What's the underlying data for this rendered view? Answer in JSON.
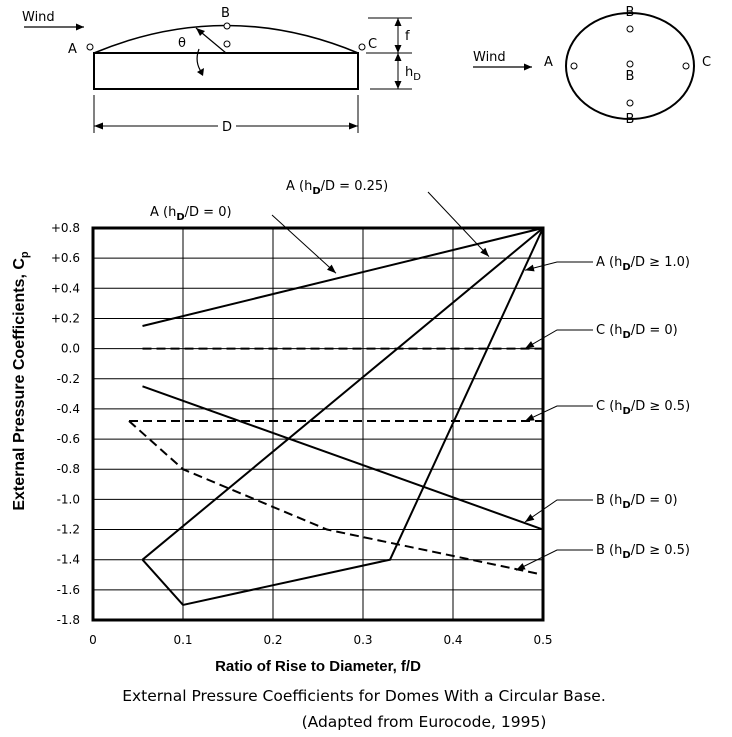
{
  "diagram": {
    "elevation": {
      "wind": "Wind",
      "point_a": "A",
      "point_b": "B",
      "point_c": "C",
      "theta": "θ",
      "rise": "f",
      "h_main": "h",
      "h_sub": "D",
      "diameter": "D"
    },
    "plan": {
      "wind": "Wind",
      "point_a": "A",
      "point_b_top": "B",
      "point_b_center": "B",
      "point_b_bottom": "B",
      "point_c": "C"
    }
  },
  "caption": {
    "line1": "External Pressure Coefficients for Domes With a Circular Base.",
    "line2": "(Adapted from Eurocode, 1995)"
  },
  "chart_data": {
    "type": "line",
    "title": "",
    "xlabel": "Ratio of Rise to Diameter, f/D",
    "ylabel_main": "External Pressure Coefficients, C",
    "ylabel_sub": "p",
    "xlim": [
      0,
      0.5
    ],
    "ylim": [
      -1.8,
      0.8
    ],
    "x_ticks": [
      0,
      0.1,
      0.2,
      0.3,
      0.4,
      0.5
    ],
    "x_tick_labels": [
      "0",
      "0.1",
      "0.2",
      "0.3",
      "0.4",
      "0.5"
    ],
    "y_ticks": [
      0.8,
      0.6,
      0.4,
      0.2,
      0.0,
      -0.2,
      -0.4,
      -0.6,
      -0.8,
      -1.0,
      -1.2,
      -1.4,
      -1.6,
      -1.8
    ],
    "y_tick_labels": [
      "+0.8",
      "+0.6",
      "+0.4",
      "+0.2",
      "0.0",
      "-0.2",
      "-0.4",
      "-0.6",
      "-0.8",
      "-1.0",
      "-1.2",
      "-1.4",
      "-1.6",
      "-1.8"
    ],
    "grid": true,
    "series": [
      {
        "name": "A (hD/D = 0)",
        "label_pre": "A (h",
        "label_sub": "D",
        "label_post": "/D = 0)",
        "style": "solid",
        "x": [
          0.055,
          0.5
        ],
        "y": [
          0.15,
          0.8
        ]
      },
      {
        "name": "A (hD/D = 0.25)",
        "label_pre": "A (h",
        "label_sub": "D",
        "label_post": "/D = 0.25)",
        "style": "solid",
        "x": [
          0.055,
          0.5
        ],
        "y": [
          -1.4,
          0.8
        ]
      },
      {
        "name": "A (hD/D ≥ 1.0)",
        "label_pre": "A (h",
        "label_sub": "D",
        "label_post": "/D ≥ 1.0)",
        "style": "solid",
        "x": [
          0.055,
          0.1,
          0.33,
          0.5
        ],
        "y": [
          -1.4,
          -1.7,
          -1.4,
          0.8
        ]
      },
      {
        "name": "C (hD/D = 0)",
        "label_pre": "C (h",
        "label_sub": "D",
        "label_post": "/D = 0)",
        "style": "dashed",
        "x": [
          0.055,
          0.5
        ],
        "y": [
          0.0,
          0.0
        ]
      },
      {
        "name": "C (hD/D ≥ 0.5)",
        "label_pre": "C (h",
        "label_sub": "D",
        "label_post": "/D ≥ 0.5)",
        "style": "dashed",
        "x": [
          0.04,
          0.5
        ],
        "y": [
          -0.48,
          -0.48
        ]
      },
      {
        "name": "B (hD/D = 0)",
        "label_pre": "B (h",
        "label_sub": "D",
        "label_post": "/D = 0)",
        "style": "solid",
        "x": [
          0.055,
          0.5
        ],
        "y": [
          -0.25,
          -1.2
        ]
      },
      {
        "name": "B (hD/D ≥ 0.5)",
        "label_pre": "B (h",
        "label_sub": "D",
        "label_post": "/D ≥ 0.5)",
        "style": "dashed",
        "x": [
          0.04,
          0.1,
          0.26,
          0.5
        ],
        "y": [
          -0.48,
          -0.8,
          -1.2,
          -1.5
        ]
      }
    ]
  }
}
